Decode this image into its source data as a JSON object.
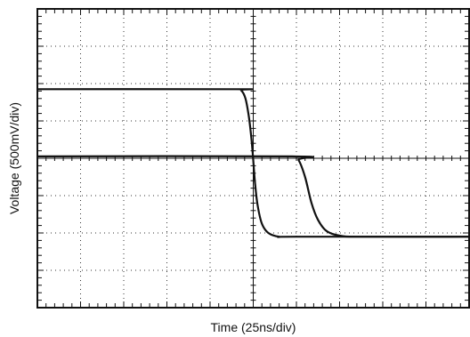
{
  "chart_data": {
    "type": "line",
    "xlabel": "Time (25ns/div)",
    "ylabel": "Voltage (500mV/div)",
    "grid": true,
    "divisions": {
      "x": 10,
      "y": 8
    },
    "x_units": "div",
    "y_units": "div",
    "xlim": [
      0,
      10
    ],
    "ylim": [
      0,
      8
    ],
    "series": [
      {
        "x": [
          0,
          4.6,
          4.72,
          4.82,
          4.9,
          4.96,
          5.0,
          5.04,
          5.1,
          5.2,
          5.35,
          5.6,
          6.0,
          10
        ],
        "y": [
          5.85,
          5.85,
          5.82,
          5.6,
          5.1,
          4.5,
          3.95,
          3.35,
          2.75,
          2.25,
          2.0,
          1.9,
          1.9,
          1.9
        ]
      },
      {
        "x": [
          0,
          5.9,
          6.05,
          6.2,
          6.35,
          6.5,
          6.7,
          7.0,
          7.5,
          10
        ],
        "y": [
          4.05,
          4.05,
          3.95,
          3.5,
          2.8,
          2.35,
          2.05,
          1.93,
          1.9,
          1.9
        ]
      }
    ]
  }
}
